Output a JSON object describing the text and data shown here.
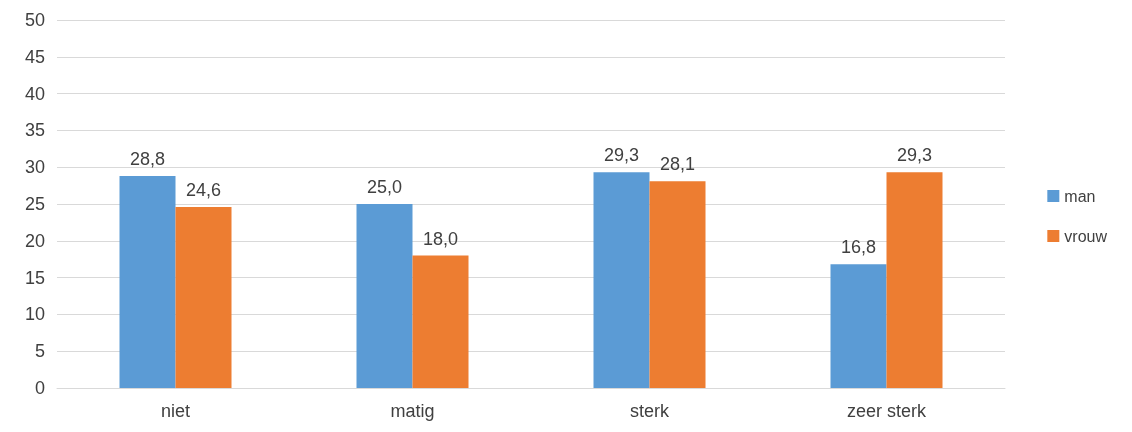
{
  "chart_data": {
    "type": "bar",
    "categories": [
      "niet",
      "matig",
      "sterk",
      "zeer sterk"
    ],
    "series": [
      {
        "name": "man",
        "color": "#5b9bd5",
        "values": [
          28.8,
          25.0,
          29.3,
          16.8
        ],
        "value_labels": [
          "28,8",
          "25,0",
          "29,3",
          "16,8"
        ]
      },
      {
        "name": "vrouw",
        "color": "#ed7d31",
        "values": [
          24.6,
          18.0,
          28.1,
          29.3
        ],
        "value_labels": [
          "24,6",
          "18,0",
          "28,1",
          "29,3"
        ]
      }
    ],
    "ylim": [
      0,
      50
    ],
    "yticks": [
      0,
      5,
      10,
      15,
      20,
      25,
      30,
      35,
      40,
      45,
      50
    ],
    "grid": "y",
    "legend": "right"
  }
}
